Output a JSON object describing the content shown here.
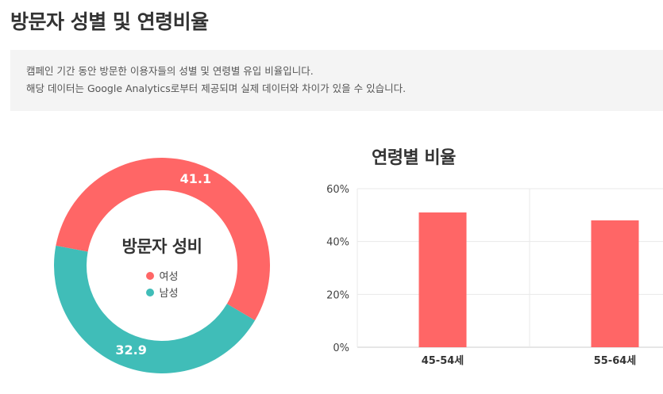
{
  "page": {
    "title": "방문자 성별 및 연령비율"
  },
  "info": {
    "lines": [
      "캠페인 기간 동안 방문한 이용자들의 성별 및 연령별 유입 비율입니다.",
      "해당 데이터는 Google Analytics로부터 제공되며 실제 데이터와 차이가 있을 수 있습니다."
    ]
  },
  "gender_chart": {
    "title": "방문자 성비",
    "legend": [
      {
        "label": "여성",
        "color": "#ff6666"
      },
      {
        "label": "남성",
        "color": "#40bdb8"
      }
    ]
  },
  "age_chart": {
    "title": "연령별 비율"
  },
  "chart_data": [
    {
      "type": "pie",
      "title": "방문자 성비",
      "donut": true,
      "labels": [
        "여성",
        "남성"
      ],
      "values": [
        41.1,
        32.9
      ],
      "value_labels": [
        "41.1",
        "32.9"
      ],
      "colors": [
        "#ff6666",
        "#40bdb8"
      ],
      "legend_placement": "center"
    },
    {
      "type": "bar",
      "title": "연령별 비율",
      "categories": [
        "45-54세",
        "55-64세"
      ],
      "values": [
        51,
        48
      ],
      "ylim": [
        0,
        60
      ],
      "yticks": [
        0,
        20,
        40,
        60
      ],
      "ytick_labels": [
        "0%",
        "20%",
        "40%",
        "60%"
      ],
      "grid": true,
      "color": "#ff6666"
    }
  ]
}
